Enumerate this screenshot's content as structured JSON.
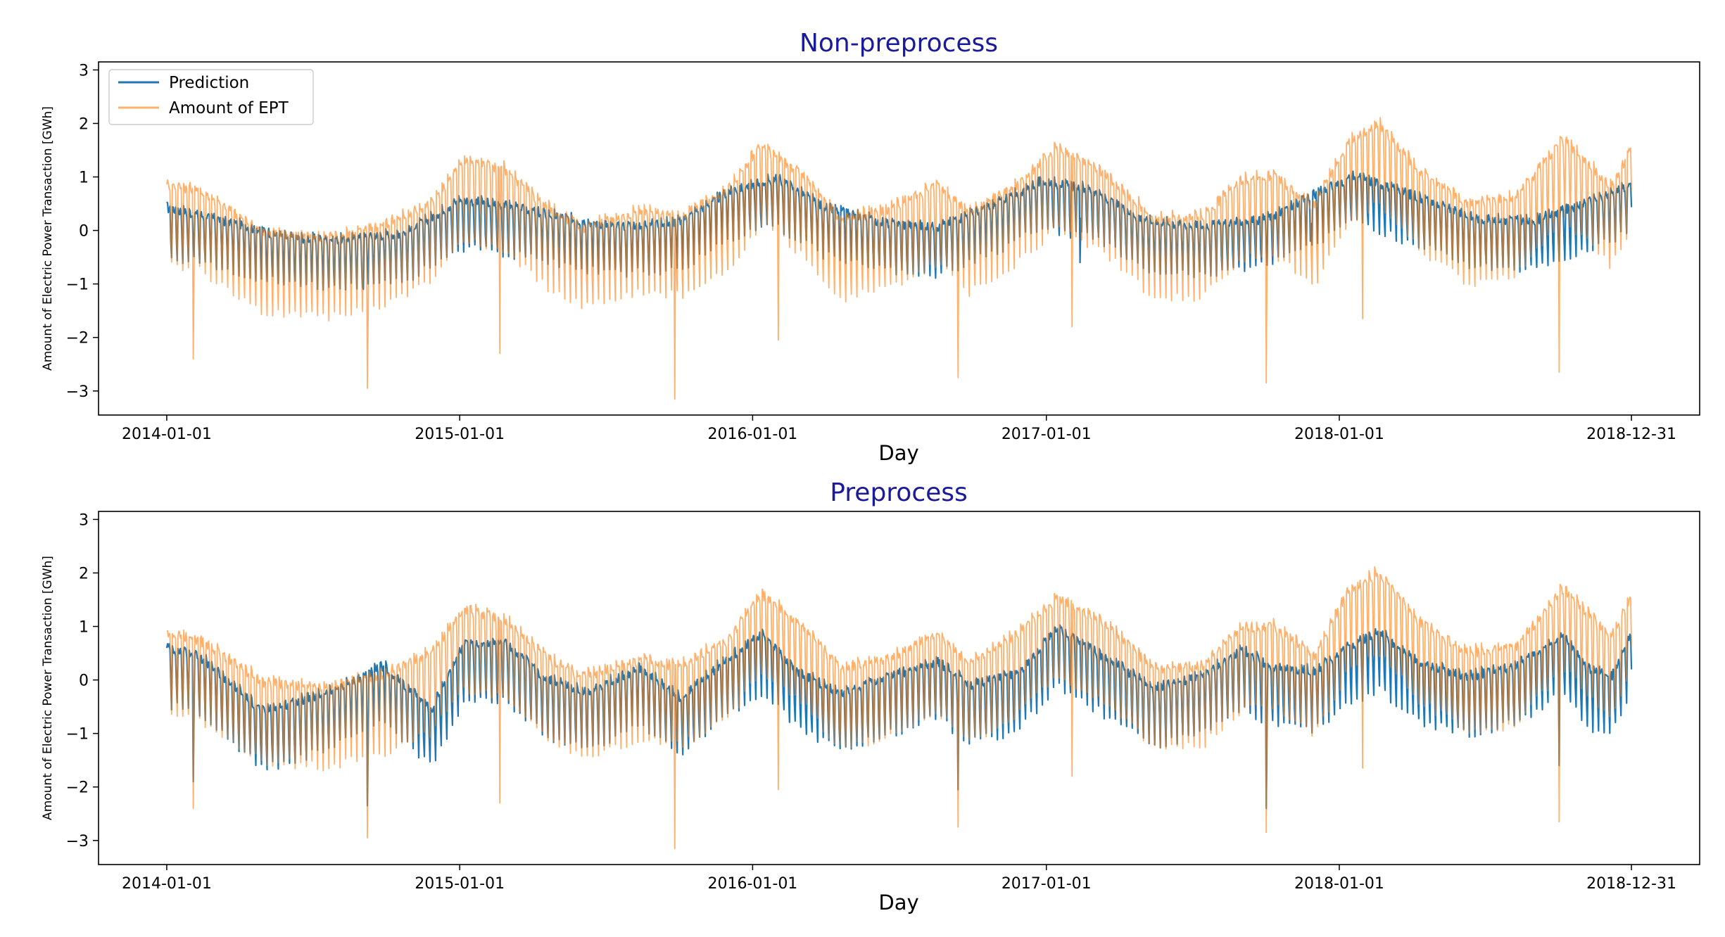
{
  "chart_data": [
    {
      "type": "line",
      "title": "Non-preprocess",
      "xlabel": "Day",
      "ylabel": "Amount of Electric Power Transaction [GWh]",
      "x_ticks": [
        "2014-01-01",
        "2015-01-01",
        "2016-01-01",
        "2017-01-01",
        "2018-01-01",
        "2018-12-31"
      ],
      "x_tick_days": [
        0,
        365,
        730,
        1096,
        1461,
        1825
      ],
      "xlim_days": [
        -85,
        1910
      ],
      "y_ticks": [
        3,
        2,
        1,
        0,
        -1,
        -2,
        -3
      ],
      "ylim": [
        -3.45,
        3.15
      ],
      "legend": {
        "location": "top-left",
        "entries": [
          "Prediction",
          "Amount of EPT"
        ]
      },
      "series": [
        {
          "name": "Prediction",
          "color": "#1f77b4",
          "weekly_swing": 0.75,
          "trend": [
            [
              0,
              0.0
            ],
            [
              60,
              -0.2
            ],
            [
              150,
              -0.55
            ],
            [
              220,
              -0.6
            ],
            [
              300,
              -0.45
            ],
            [
              365,
              0.15
            ],
            [
              420,
              0.05
            ],
            [
              500,
              -0.2
            ],
            [
              560,
              -0.35
            ],
            [
              640,
              -0.25
            ],
            [
              700,
              0.3
            ],
            [
              760,
              0.55
            ],
            [
              820,
              0.0
            ],
            [
              900,
              -0.3
            ],
            [
              960,
              -0.35
            ],
            [
              1030,
              0.05
            ],
            [
              1090,
              0.5
            ],
            [
              1150,
              0.35
            ],
            [
              1220,
              -0.25
            ],
            [
              1290,
              -0.35
            ],
            [
              1370,
              -0.2
            ],
            [
              1430,
              0.25
            ],
            [
              1480,
              0.6
            ],
            [
              1560,
              0.2
            ],
            [
              1630,
              -0.2
            ],
            [
              1700,
              -0.25
            ],
            [
              1780,
              0.15
            ],
            [
              1825,
              0.45
            ]
          ],
          "dips": [
            [
              245,
              -1.1
            ],
            [
              1138,
              -0.6
            ],
            [
              1425,
              -0.2
            ]
          ]
        },
        {
          "name": "Amount of EPT",
          "color": "#ff7f0e",
          "weekly_swing": 1.25,
          "trend": [
            [
              0,
              0.15
            ],
            [
              40,
              0.05
            ],
            [
              120,
              -0.75
            ],
            [
              200,
              -0.85
            ],
            [
              270,
              -0.6
            ],
            [
              330,
              -0.2
            ],
            [
              370,
              0.6
            ],
            [
              420,
              0.45
            ],
            [
              470,
              -0.25
            ],
            [
              520,
              -0.65
            ],
            [
              590,
              -0.35
            ],
            [
              640,
              -0.45
            ],
            [
              700,
              0.05
            ],
            [
              740,
              0.9
            ],
            [
              790,
              0.35
            ],
            [
              840,
              -0.5
            ],
            [
              900,
              -0.3
            ],
            [
              960,
              0.15
            ],
            [
              1000,
              -0.4
            ],
            [
              1060,
              0.15
            ],
            [
              1110,
              0.85
            ],
            [
              1170,
              0.35
            ],
            [
              1230,
              -0.5
            ],
            [
              1290,
              -0.45
            ],
            [
              1340,
              0.25
            ],
            [
              1380,
              0.3
            ],
            [
              1430,
              -0.25
            ],
            [
              1470,
              0.9
            ],
            [
              1510,
              1.3
            ],
            [
              1560,
              0.4
            ],
            [
              1620,
              -0.2
            ],
            [
              1680,
              -0.1
            ],
            [
              1740,
              1.0
            ],
            [
              1770,
              0.55
            ],
            [
              1800,
              0.1
            ],
            [
              1825,
              0.85
            ]
          ],
          "dips": [
            [
              33,
              -2.4
            ],
            [
              250,
              -2.95
            ],
            [
              415,
              -2.3
            ],
            [
              633,
              -3.15
            ],
            [
              762,
              -2.05
            ],
            [
              986,
              -2.75
            ],
            [
              1128,
              -1.8
            ],
            [
              1370,
              -2.85
            ],
            [
              1490,
              -1.65
            ],
            [
              1735,
              -2.65
            ]
          ]
        }
      ]
    },
    {
      "type": "line",
      "title": "Preprocess",
      "xlabel": "Day",
      "ylabel": "Amount of Electric Power Transaction [GWh]",
      "x_ticks": [
        "2014-01-01",
        "2015-01-01",
        "2016-01-01",
        "2017-01-01",
        "2018-01-01",
        "2018-12-31"
      ],
      "x_tick_days": [
        0,
        365,
        730,
        1096,
        1461,
        1825
      ],
      "xlim_days": [
        -85,
        1910
      ],
      "y_ticks": [
        3,
        2,
        1,
        0,
        -1,
        -2,
        -3
      ],
      "ylim": [
        -3.45,
        3.15
      ],
      "legend": null,
      "series": [
        {
          "name": "Prediction",
          "color": "#1f77b4",
          "weekly_swing": 0.9,
          "trend": [
            [
              0,
              0.1
            ],
            [
              40,
              -0.05
            ],
            [
              120,
              -1.1
            ],
            [
              200,
              -0.75
            ],
            [
              270,
              -0.25
            ],
            [
              330,
              -1.05
            ],
            [
              370,
              0.15
            ],
            [
              420,
              0.2
            ],
            [
              470,
              -0.45
            ],
            [
              520,
              -0.75
            ],
            [
              590,
              -0.3
            ],
            [
              640,
              -0.85
            ],
            [
              700,
              -0.1
            ],
            [
              740,
              0.35
            ],
            [
              790,
              -0.4
            ],
            [
              840,
              -0.75
            ],
            [
              900,
              -0.45
            ],
            [
              960,
              -0.15
            ],
            [
              1000,
              -0.6
            ],
            [
              1060,
              -0.4
            ],
            [
              1110,
              0.45
            ],
            [
              1170,
              -0.1
            ],
            [
              1230,
              -0.65
            ],
            [
              1290,
              -0.45
            ],
            [
              1340,
              0.05
            ],
            [
              1380,
              -0.3
            ],
            [
              1430,
              -0.35
            ],
            [
              1470,
              0.1
            ],
            [
              1510,
              0.4
            ],
            [
              1560,
              -0.2
            ],
            [
              1620,
              -0.45
            ],
            [
              1680,
              -0.25
            ],
            [
              1740,
              0.3
            ],
            [
              1770,
              -0.3
            ],
            [
              1800,
              -0.45
            ],
            [
              1825,
              0.35
            ]
          ],
          "dips": [
            [
              33,
              -1.9
            ],
            [
              250,
              -2.35
            ],
            [
              1370,
              -2.4
            ],
            [
              986,
              -2.05
            ],
            [
              1735,
              -1.6
            ]
          ]
        },
        {
          "name": "Amount of EPT",
          "color": "#ff7f0e",
          "weekly_swing": 1.25,
          "trend": [
            [
              0,
              0.15
            ],
            [
              40,
              0.05
            ],
            [
              120,
              -0.75
            ],
            [
              200,
              -0.85
            ],
            [
              270,
              -0.6
            ],
            [
              330,
              -0.2
            ],
            [
              370,
              0.6
            ],
            [
              420,
              0.45
            ],
            [
              470,
              -0.25
            ],
            [
              520,
              -0.65
            ],
            [
              590,
              -0.35
            ],
            [
              640,
              -0.45
            ],
            [
              700,
              0.05
            ],
            [
              740,
              0.9
            ],
            [
              790,
              0.35
            ],
            [
              840,
              -0.5
            ],
            [
              900,
              -0.3
            ],
            [
              960,
              0.15
            ],
            [
              1000,
              -0.4
            ],
            [
              1060,
              0.15
            ],
            [
              1110,
              0.85
            ],
            [
              1170,
              0.35
            ],
            [
              1230,
              -0.5
            ],
            [
              1290,
              -0.45
            ],
            [
              1340,
              0.25
            ],
            [
              1380,
              0.3
            ],
            [
              1430,
              -0.25
            ],
            [
              1470,
              0.9
            ],
            [
              1510,
              1.3
            ],
            [
              1560,
              0.4
            ],
            [
              1620,
              -0.2
            ],
            [
              1680,
              -0.1
            ],
            [
              1740,
              1.0
            ],
            [
              1770,
              0.55
            ],
            [
              1800,
              0.1
            ],
            [
              1825,
              0.85
            ]
          ],
          "dips": [
            [
              33,
              -2.4
            ],
            [
              250,
              -2.95
            ],
            [
              415,
              -2.3
            ],
            [
              633,
              -3.15
            ],
            [
              762,
              -2.05
            ],
            [
              986,
              -2.75
            ],
            [
              1128,
              -1.8
            ],
            [
              1370,
              -2.85
            ],
            [
              1490,
              -1.65
            ],
            [
              1735,
              -2.65
            ]
          ]
        }
      ]
    }
  ]
}
